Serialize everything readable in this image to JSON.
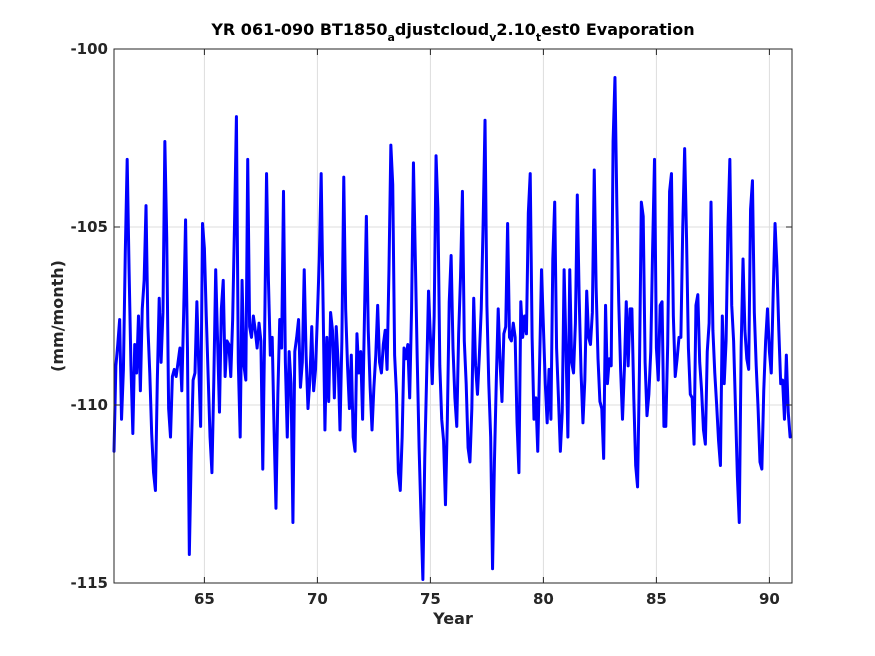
{
  "chart_data": {
    "type": "line",
    "title_parts": {
      "t1": "YR 061-090 BT1850",
      "s1": "a",
      "t2": "djustcloud",
      "s2": "v",
      "t3": "2.10",
      "s3": "t",
      "t4": "est0 Evaporation"
    },
    "xlabel": "Year",
    "ylabel": "(mm/month)",
    "xlim": [
      61,
      91
    ],
    "ylim": [
      -115,
      -100
    ],
    "xticks": [
      65,
      70,
      75,
      80,
      85,
      90
    ],
    "yticks": [
      -115,
      -110,
      -105,
      -100
    ],
    "xtick_labels": [
      "65",
      "70",
      "75",
      "80",
      "85",
      "90"
    ],
    "ytick_labels": [
      "-115",
      "-110",
      "-105",
      "-100"
    ],
    "grid": true,
    "series": [
      {
        "color": "#0000ff",
        "x_start": 61.0,
        "x_step": 0.083333,
        "values": [
          -111.3,
          -108.9,
          -108.3,
          -107.6,
          -110.4,
          -109.0,
          -105.7,
          -103.1,
          -106.2,
          -108.9,
          -110.8,
          -108.3,
          -109.1,
          -107.5,
          -109.6,
          -107.3,
          -106.5,
          -104.4,
          -107.8,
          -109.1,
          -110.8,
          -111.9,
          -112.4,
          -109.3,
          -107.0,
          -108.8,
          -107.4,
          -102.6,
          -105.3,
          -110.1,
          -110.9,
          -109.2,
          -109.0,
          -109.2,
          -108.8,
          -108.4,
          -109.6,
          -107.4,
          -104.8,
          -108.4,
          -114.2,
          -111.4,
          -109.3,
          -109.1,
          -107.1,
          -108.9,
          -110.6,
          -104.9,
          -105.6,
          -107.5,
          -109.2,
          -110.9,
          -111.9,
          -109.3,
          -106.2,
          -108.2,
          -110.2,
          -107.3,
          -106.5,
          -109.2,
          -108.2,
          -108.3,
          -109.2,
          -107.6,
          -104.9,
          -101.9,
          -108.8,
          -110.9,
          -106.5,
          -108.9,
          -109.3,
          -103.1,
          -107.8,
          -108.1,
          -107.5,
          -107.9,
          -108.4,
          -107.7,
          -108.2,
          -111.8,
          -107.9,
          -103.5,
          -106.5,
          -108.6,
          -108.1,
          -110.7,
          -112.9,
          -109.7,
          -107.6,
          -108.4,
          -104.0,
          -108.8,
          -110.9,
          -108.5,
          -109.4,
          -113.3,
          -108.5,
          -108.1,
          -107.6,
          -109.5,
          -108.8,
          -106.2,
          -108.6,
          -110.1,
          -109.3,
          -107.8,
          -109.6,
          -109.0,
          -107.5,
          -105.9,
          -103.5,
          -107.1,
          -110.7,
          -108.1,
          -109.9,
          -107.4,
          -107.9,
          -109.8,
          -107.8,
          -108.8,
          -110.7,
          -108.2,
          -103.6,
          -107.3,
          -108.9,
          -110.1,
          -108.6,
          -110.9,
          -111.3,
          -108.0,
          -109.1,
          -108.5,
          -110.4,
          -107.5,
          -104.7,
          -107.9,
          -109.5,
          -110.7,
          -109.5,
          -108.6,
          -107.2,
          -108.8,
          -109.1,
          -108.3,
          -107.9,
          -109.0,
          -106.2,
          -102.7,
          -103.8,
          -108.6,
          -109.7,
          -111.9,
          -112.4,
          -110.9,
          -108.4,
          -108.7,
          -108.3,
          -109.8,
          -107.3,
          -103.2,
          -105.9,
          -108.7,
          -111.2,
          -113.1,
          -114.9,
          -111.5,
          -109.2,
          -106.8,
          -108.1,
          -109.4,
          -107.5,
          -103.0,
          -104.5,
          -108.9,
          -110.4,
          -111.0,
          -112.8,
          -110.4,
          -107.1,
          -105.8,
          -108.4,
          -109.8,
          -110.6,
          -108.0,
          -106.4,
          -104.0,
          -108.2,
          -109.4,
          -111.2,
          -111.6,
          -110.1,
          -107.0,
          -108.9,
          -109.7,
          -108.6,
          -107.3,
          -104.9,
          -102.0,
          -107.2,
          -109.4,
          -110.9,
          -114.6,
          -111.6,
          -109.3,
          -107.3,
          -108.8,
          -109.9,
          -108.0,
          -107.8,
          -104.9,
          -108.1,
          -108.2,
          -107.7,
          -108.1,
          -110.5,
          -111.9,
          -107.1,
          -108.1,
          -107.5,
          -108.0,
          -104.6,
          -103.5,
          -108.1,
          -110.4,
          -109.8,
          -111.3,
          -108.8,
          -106.2,
          -107.8,
          -109.4,
          -110.5,
          -109.0,
          -110.4,
          -105.9,
          -104.3,
          -108.4,
          -109.8,
          -111.3,
          -110.2,
          -106.2,
          -108.4,
          -110.9,
          -106.2,
          -108.8,
          -109.1,
          -107.7,
          -104.1,
          -107.0,
          -109.1,
          -110.5,
          -109.3,
          -106.8,
          -108.1,
          -108.3,
          -107.4,
          -103.4,
          -106.7,
          -108.7,
          -109.9,
          -110.1,
          -111.5,
          -107.2,
          -109.4,
          -108.7,
          -108.9,
          -102.6,
          -100.8,
          -104.4,
          -107.1,
          -109.0,
          -110.4,
          -109.0,
          -107.1,
          -108.9,
          -107.3,
          -107.3,
          -109.8,
          -111.7,
          -112.3,
          -109.0,
          -104.3,
          -104.7,
          -108.8,
          -110.3,
          -109.7,
          -108.5,
          -105.6,
          -103.1,
          -108.4,
          -109.3,
          -107.2,
          -107.1,
          -110.6,
          -110.6,
          -108.3,
          -104.0,
          -103.5,
          -107.5,
          -109.2,
          -108.7,
          -108.1,
          -108.1,
          -105.0,
          -102.8,
          -105.3,
          -108.4,
          -109.7,
          -109.8,
          -111.1,
          -107.2,
          -106.9,
          -108.8,
          -109.6,
          -110.7,
          -111.1,
          -108.5,
          -107.7,
          -104.3,
          -107.9,
          -109.1,
          -110.0,
          -111.0,
          -111.7,
          -107.5,
          -109.4,
          -108.2,
          -105.0,
          -103.1,
          -107.2,
          -108.2,
          -110.1,
          -112.0,
          -113.3,
          -108.4,
          -105.9,
          -107.9,
          -108.7,
          -109.0,
          -104.5,
          -103.7,
          -107.4,
          -108.9,
          -110.1,
          -111.6,
          -111.8,
          -109.6,
          -108.2,
          -107.3,
          -108.5,
          -109.1,
          -106.9,
          -104.9,
          -106.1,
          -107.9,
          -109.4,
          -109.3,
          -110.4,
          -108.6,
          -110.2,
          -110.9
        ]
      }
    ]
  }
}
